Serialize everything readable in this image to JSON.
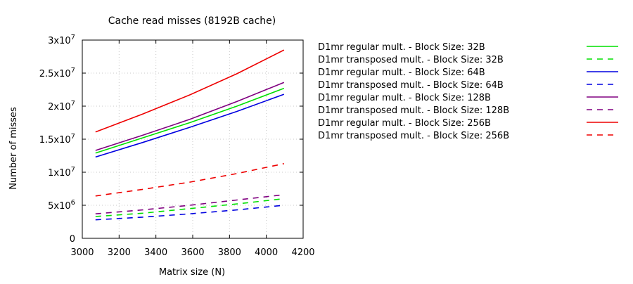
{
  "chart_data": {
    "type": "line",
    "title": "Cache read misses (8192B cache)",
    "xlabel": "Matrix size (N)",
    "ylabel": "Number of misses",
    "xlim": [
      3000,
      4200
    ],
    "ylim": [
      0,
      30000000
    ],
    "x_ticks": [
      3000,
      3200,
      3400,
      3600,
      3800,
      4000,
      4200
    ],
    "y_ticks": [
      {
        "value": 0,
        "mantissa": "0",
        "exponent": ""
      },
      {
        "value": 5000000,
        "mantissa": "5x10",
        "exponent": "6"
      },
      {
        "value": 10000000,
        "mantissa": "1x10",
        "exponent": "7"
      },
      {
        "value": 15000000,
        "mantissa": "1.5x10",
        "exponent": "7"
      },
      {
        "value": 20000000,
        "mantissa": "2x10",
        "exponent": "7"
      },
      {
        "value": 25000000,
        "mantissa": "2.5x10",
        "exponent": "7"
      },
      {
        "value": 30000000,
        "mantissa": "3x10",
        "exponent": "7"
      }
    ],
    "grid": true,
    "legend_position": "right",
    "x": [
      3072,
      3328,
      3584,
      3840,
      4096
    ],
    "series": [
      {
        "name": "D1mr regular mult. - Block Size: 32B",
        "color": "#00e000",
        "dash": false,
        "values": [
          12900000,
          15200000,
          17500000,
          20000000,
          22700000
        ]
      },
      {
        "name": "D1mr transposed mult. - Block Size: 32B",
        "color": "#00e000",
        "dash": true,
        "values": [
          3300000,
          3800000,
          4500000,
          5200000,
          6000000
        ]
      },
      {
        "name": "D1mr regular mult. - Block Size: 64B",
        "color": "#0000e0",
        "dash": false,
        "values": [
          12300000,
          14500000,
          16800000,
          19200000,
          21800000
        ]
      },
      {
        "name": "D1mr transposed mult. - Block Size: 64B",
        "color": "#0000e0",
        "dash": true,
        "values": [
          2800000,
          3200000,
          3700000,
          4300000,
          5000000
        ]
      },
      {
        "name": "D1mr regular mult. - Block Size: 128B",
        "color": "#800080",
        "dash": false,
        "values": [
          13300000,
          15600000,
          18000000,
          20700000,
          23600000
        ]
      },
      {
        "name": "D1mr transposed mult. - Block Size: 128B",
        "color": "#800080",
        "dash": true,
        "values": [
          3700000,
          4300000,
          5000000,
          5800000,
          6600000
        ]
      },
      {
        "name": "D1mr regular mult. - Block Size: 256B",
        "color": "#ee0000",
        "dash": false,
        "values": [
          16100000,
          18800000,
          21700000,
          24900000,
          28500000
        ]
      },
      {
        "name": "D1mr transposed mult. - Block Size: 256B",
        "color": "#ee0000",
        "dash": true,
        "values": [
          6400000,
          7400000,
          8500000,
          9800000,
          11300000
        ]
      }
    ]
  }
}
